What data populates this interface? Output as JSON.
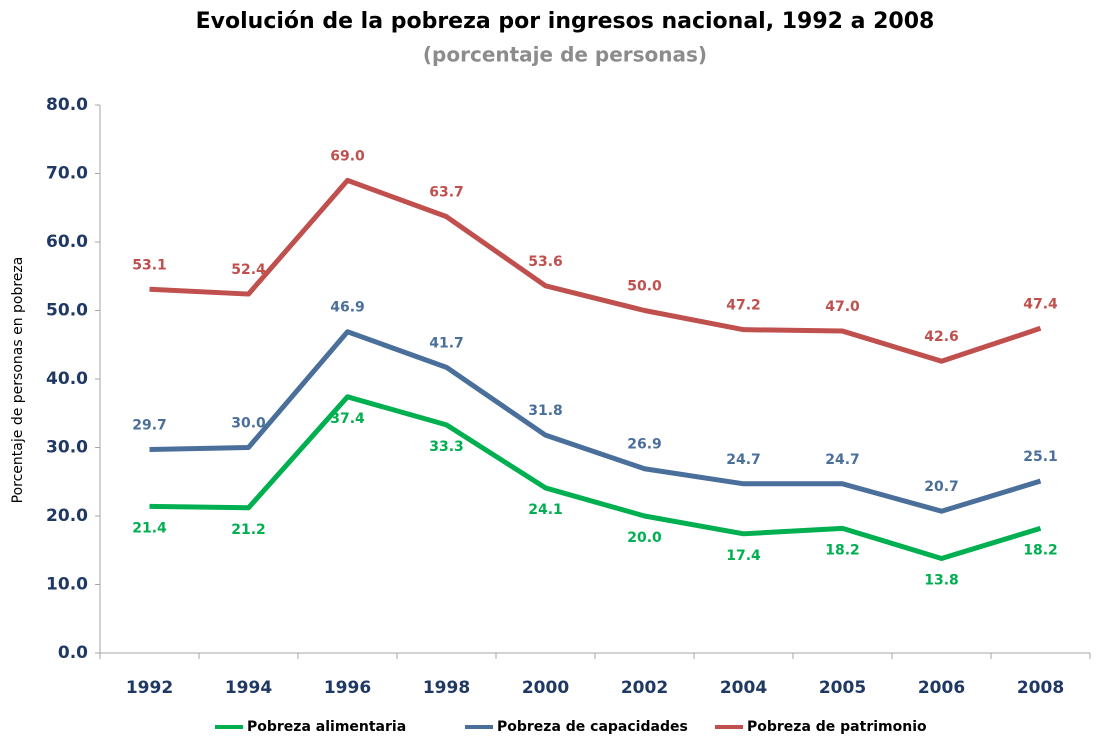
{
  "chart_data": {
    "type": "line",
    "title": "Evolución de la pobreza por ingresos nacional, 1992 a 2008",
    "subtitle": "(porcentaje de personas)",
    "y_label": "Porcentaje de personas en pobreza",
    "categories": [
      "1992",
      "1994",
      "1996",
      "1998",
      "2000",
      "2002",
      "2004",
      "2005",
      "2006",
      "2008"
    ],
    "series": [
      {
        "name": "Pobreza alimentaria",
        "color": "#00b050",
        "values": [
          21.4,
          21.2,
          37.4,
          33.3,
          24.1,
          20.0,
          17.4,
          18.2,
          13.8,
          18.2
        ],
        "value_labels": [
          "21.4",
          "21.2",
          "37.4",
          "33.3",
          "24.1",
          "20.0",
          "17.4",
          "18.2",
          "13.8",
          "18.2"
        ]
      },
      {
        "name": "Pobreza de capacidades",
        "color": "#4a6f9b",
        "values": [
          29.7,
          30.0,
          46.9,
          41.7,
          31.8,
          26.9,
          24.7,
          24.7,
          20.7,
          25.1
        ],
        "value_labels": [
          "29.7",
          "30.0",
          "46.9",
          "41.7",
          "31.8",
          "26.9",
          "24.7",
          "24.7",
          "20.7",
          "25.1"
        ]
      },
      {
        "name": "Pobreza de patrimonio",
        "color": "#c0504d",
        "values": [
          53.1,
          52.4,
          69.0,
          63.7,
          53.6,
          50.0,
          47.2,
          47.0,
          42.6,
          47.4
        ],
        "value_labels": [
          "53.1",
          "52.4",
          "69.0",
          "63.7",
          "53.6",
          "50.0",
          "47.2",
          "47.0",
          "42.6",
          "47.4"
        ]
      }
    ],
    "ylim": [
      0,
      80
    ],
    "yticks": [
      {
        "value": 0,
        "label": "0.0"
      },
      {
        "value": 10,
        "label": "10.0"
      },
      {
        "value": 20,
        "label": "20.0"
      },
      {
        "value": 30,
        "label": "30.0"
      },
      {
        "value": 40,
        "label": "40.0"
      },
      {
        "value": 50,
        "label": "50.0"
      },
      {
        "value": 60,
        "label": "60.0"
      },
      {
        "value": 70,
        "label": "70.0"
      },
      {
        "value": 80,
        "label": "80.0"
      }
    ],
    "grid": false,
    "legend": "bottom"
  }
}
